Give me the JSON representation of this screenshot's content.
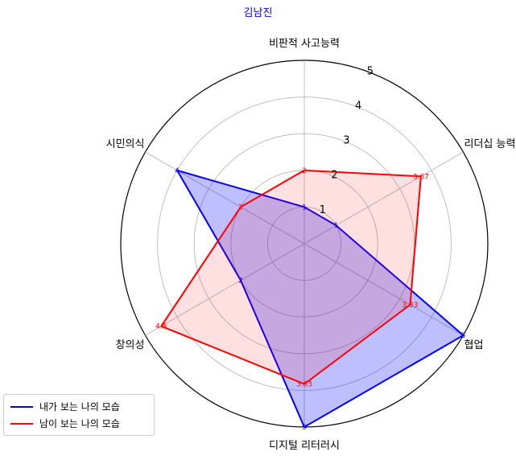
{
  "chart_data": {
    "type": "radar",
    "title": "김남진",
    "categories": [
      "비판적 사고능력",
      "리더십 능력",
      "협업",
      "디지털 리터러시",
      "창의성",
      "시민의식"
    ],
    "radial_ticks": [
      "1",
      "2",
      "3",
      "4",
      "5"
    ],
    "rmax": 5,
    "grid": true,
    "legend_position": "bottom-left",
    "series": [
      {
        "name": "내가 보는 나의 모습",
        "color": "#0000ff",
        "fill": "#0000ff",
        "values": [
          1,
          1,
          5,
          5,
          2,
          4
        ],
        "labels": [
          "1",
          "1",
          "5",
          "5",
          "2",
          "4"
        ]
      },
      {
        "name": "남이 보는 나의 모습",
        "color": "#ff0000",
        "fill": "#ff0000",
        "values": [
          2,
          3.67,
          3.33,
          3.83,
          4.5,
          2
        ],
        "labels": [
          "2",
          "3.67",
          "3.33",
          "3.83",
          "4.5",
          "2"
        ]
      }
    ]
  }
}
